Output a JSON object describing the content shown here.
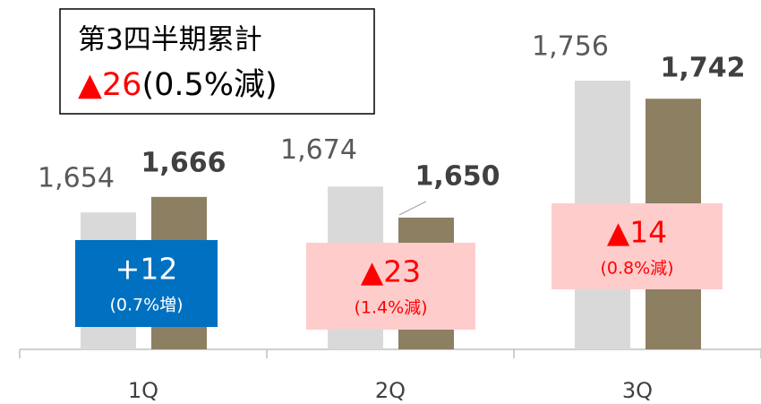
{
  "chart_data": {
    "type": "bar",
    "categories": [
      "1Q",
      "2Q",
      "3Q"
    ],
    "series": [
      {
        "color": "#d9d9d9",
        "values": [
          1654,
          1674,
          1756
        ],
        "value_labels": [
          "1,654",
          "1,674",
          "1,756"
        ]
      },
      {
        "color": "#8c7f62",
        "values": [
          1666,
          1650,
          1742
        ],
        "value_labels": [
          "1,666",
          "1,650",
          "1,742"
        ]
      }
    ],
    "ylim": [
      1548,
      1790
    ],
    "annotations": [
      {
        "change": "+12",
        "pct": "(0.7%増)"
      },
      {
        "change": "▲23",
        "pct": "(1.4%減)"
      },
      {
        "change": "▲14",
        "pct": "(0.8%減)"
      }
    ],
    "summary": {
      "title": "第3四半期累計",
      "change": "▲26",
      "pct": "(0.5%減)"
    }
  }
}
